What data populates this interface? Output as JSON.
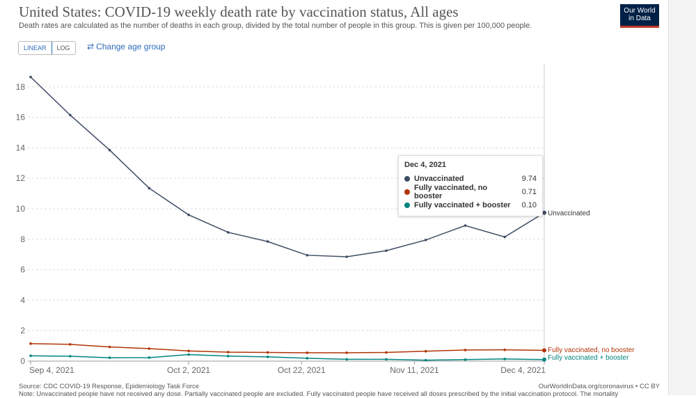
{
  "header": {
    "title": "United States: COVID-19 weekly death rate by vaccination status, All ages",
    "subtitle": "Death rates are calculated as the number of deaths in each group, divided by the total number of people in this group. This is given per 100,000 people.",
    "logo_line1": "Our World",
    "logo_line2": "in Data"
  },
  "controls": {
    "linear_label": "LINEAR",
    "log_label": "LOG",
    "change_age_label": "Change age group",
    "change_age_icon": "swap-arrows-icon"
  },
  "tooltip": {
    "date": "Dec 4, 2021",
    "rows": [
      {
        "name": "Unvaccinated",
        "value": "9.74",
        "color": "#3d4b63"
      },
      {
        "name": "Fully vaccinated, no booster",
        "value": "0.71",
        "color": "#b13507"
      },
      {
        "name": "Fully vaccinated + booster",
        "value": "0.10",
        "color": "#00847e"
      }
    ]
  },
  "footer": {
    "source": "Source: CDC COVID-19 Response, Epidemiology Task Force",
    "credit": "OurWorldInData.org/coronavirus • CC BY",
    "note": "Note: Unvaccinated people have not received any dose. Partially vaccinated people are excluded. Fully vaccinated people have received all doses prescribed by the initial vaccination protocol. The mortality"
  },
  "chart_data": {
    "type": "line",
    "x": [
      "Sep 4, 2021",
      "Sep 11, 2021",
      "Sep 18, 2021",
      "Sep 25, 2021",
      "Oct 2, 2021",
      "Oct 9, 2021",
      "Oct 16, 2021",
      "Oct 23, 2021",
      "Oct 30, 2021",
      "Nov 6, 2021",
      "Nov 13, 2021",
      "Nov 20, 2021",
      "Nov 27, 2021",
      "Dec 4, 2021"
    ],
    "x_ticks": [
      "Sep 4, 2021",
      "Oct 2, 2021",
      "Oct 22, 2021",
      "Nov 11, 2021",
      "Dec 4, 2021"
    ],
    "x_tick_index": [
      0,
      4,
      6.857,
      9.714,
      13
    ],
    "y_ticks": [
      0,
      2,
      4,
      6,
      8,
      10,
      12,
      14,
      16,
      18
    ],
    "ylim": [
      0,
      19.5
    ],
    "grid": "horizontal dashed",
    "series": [
      {
        "name": "Unvaccinated",
        "color": "#3d4b63",
        "values": [
          18.65,
          16.15,
          13.85,
          11.35,
          9.6,
          8.45,
          7.85,
          6.95,
          6.85,
          7.25,
          7.95,
          8.9,
          8.15,
          9.74
        ]
      },
      {
        "name": "Fully vaccinated, no booster",
        "color": "#b13507",
        "values": [
          1.15,
          1.1,
          0.93,
          0.82,
          0.67,
          0.59,
          0.57,
          0.55,
          0.55,
          0.57,
          0.65,
          0.73,
          0.74,
          0.71
        ]
      },
      {
        "name": "Fully vaccinated + booster",
        "color": "#00847e",
        "values": [
          0.35,
          0.32,
          0.22,
          0.23,
          0.43,
          0.33,
          0.28,
          0.19,
          0.12,
          0.12,
          0.06,
          0.1,
          0.14,
          0.1
        ]
      }
    ],
    "end_labels": [
      "Unvaccinated",
      "Fully vaccinated, no booster",
      "Fully vaccinated + booster"
    ]
  }
}
